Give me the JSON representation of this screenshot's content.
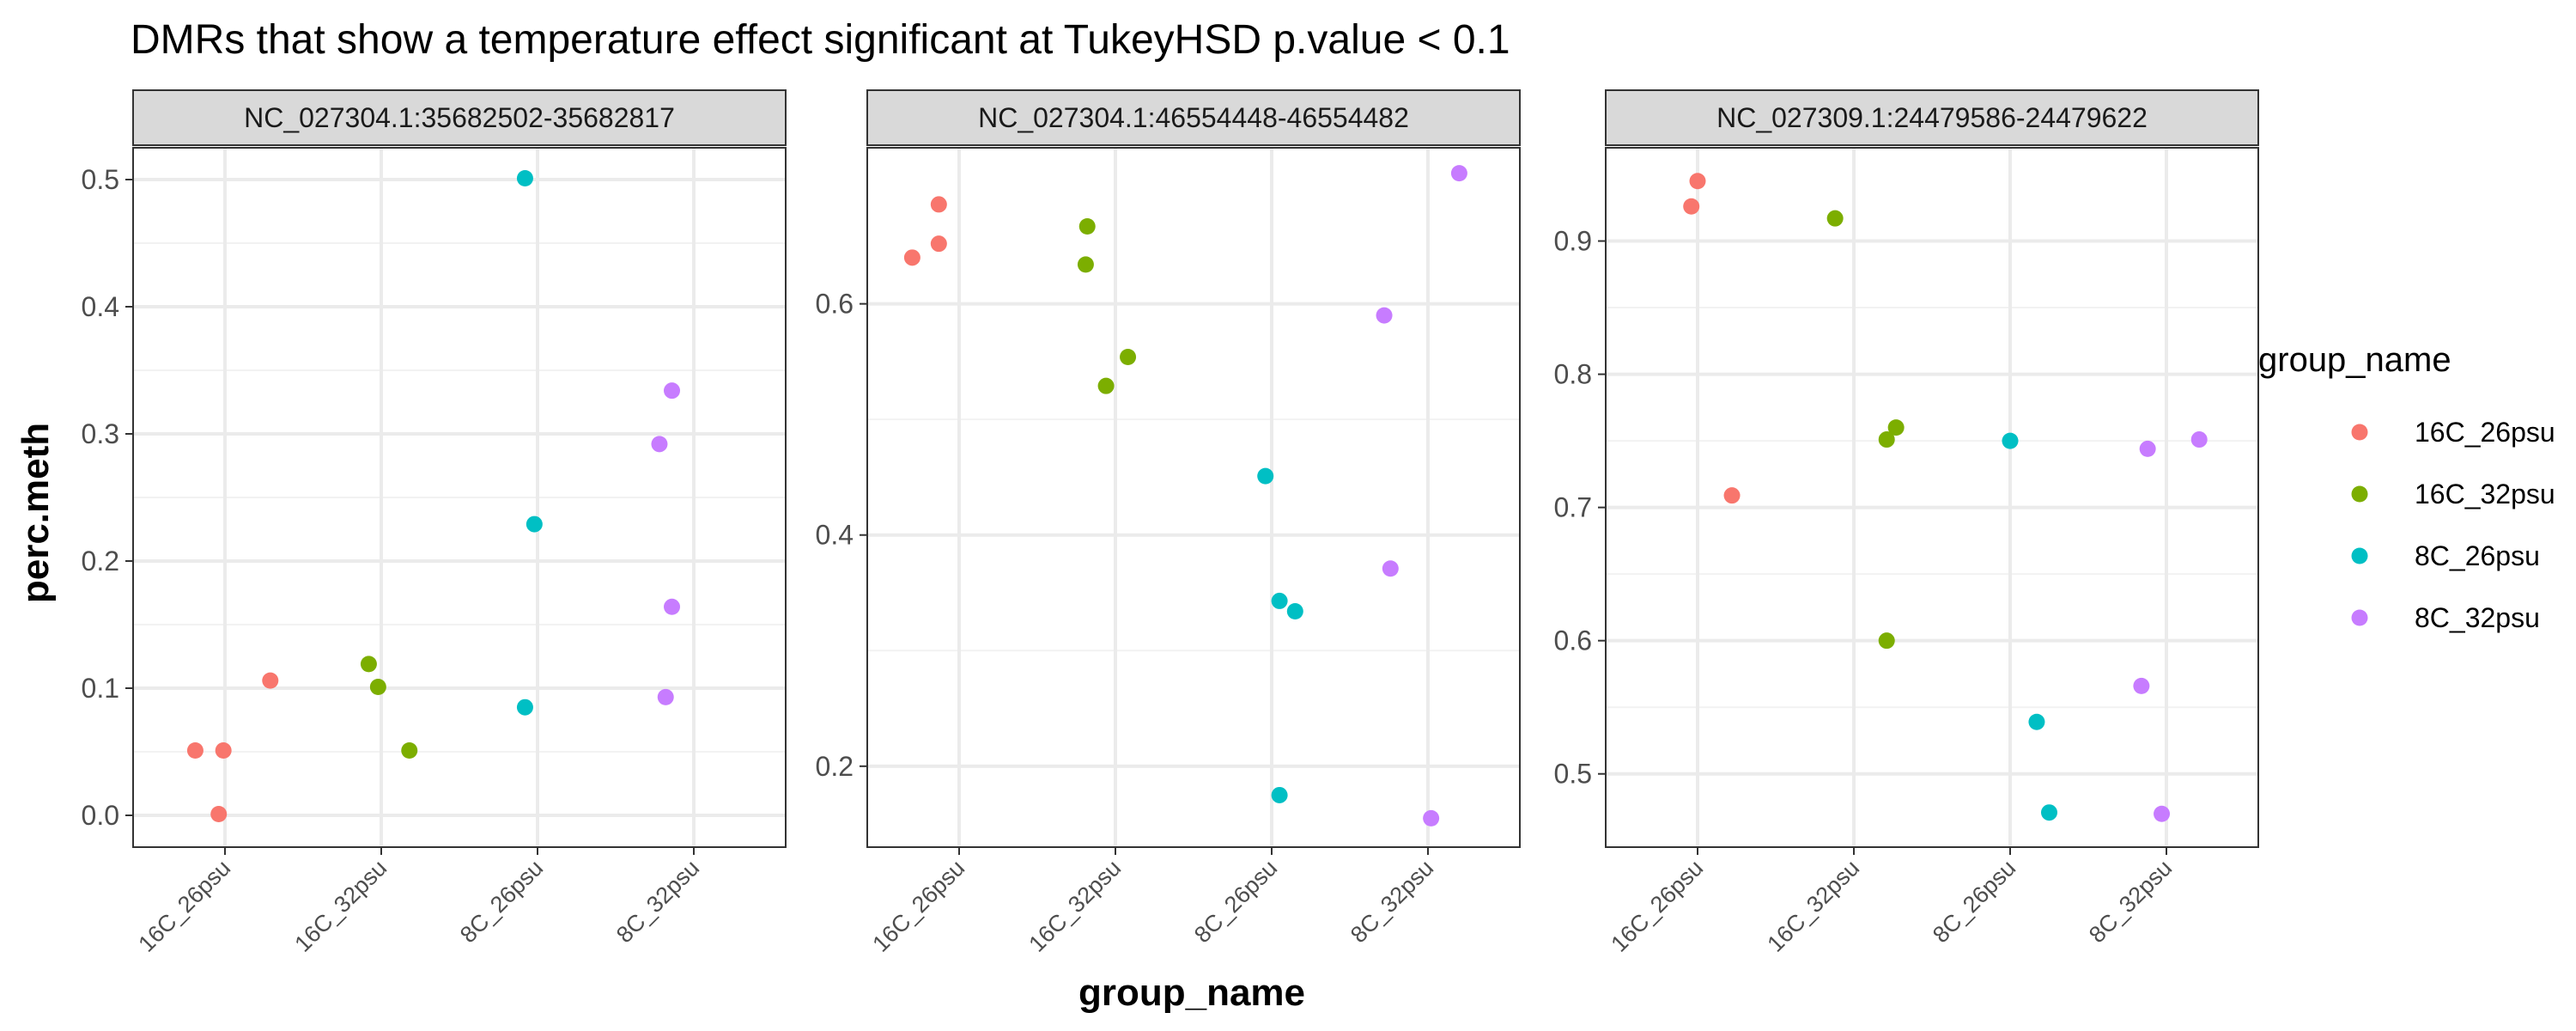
{
  "chart_data": {
    "type": "scatter",
    "title": "DMRs that show a temperature effect significant at TukeyHSD p.value < 0.1",
    "xlabel": "group_name",
    "ylabel": "perc.meth",
    "categories": [
      "16C_26psu",
      "16C_32psu",
      "8C_26psu",
      "8C_32psu"
    ],
    "legend": {
      "title": "group_name",
      "position": "right",
      "entries": [
        {
          "label": "16C_26psu",
          "color": "#F8766D"
        },
        {
          "label": "16C_32psu",
          "color": "#7CAE00"
        },
        {
          "label": "8C_26psu",
          "color": "#00BFC4"
        },
        {
          "label": "8C_32psu",
          "color": "#C77CFF"
        }
      ]
    },
    "facets": [
      {
        "strip": "NC_027304.1:35682502-35682817",
        "ylim": [
          -0.025,
          0.525
        ],
        "yticks": [
          0.0,
          0.1,
          0.2,
          0.3,
          0.4,
          0.5
        ],
        "ytick_labels": [
          "0.0",
          "0.1",
          "0.2",
          "0.3",
          "0.4",
          "0.5"
        ],
        "points": [
          {
            "group": "16C_26psu",
            "x": 0.81,
            "y": 0.051
          },
          {
            "group": "16C_26psu",
            "x": 0.96,
            "y": 0.001
          },
          {
            "group": "16C_26psu",
            "x": 0.99,
            "y": 0.051
          },
          {
            "group": "16C_26psu",
            "x": 1.29,
            "y": 0.106
          },
          {
            "group": "16C_32psu",
            "x": 1.92,
            "y": 0.119
          },
          {
            "group": "16C_32psu",
            "x": 1.98,
            "y": 0.101
          },
          {
            "group": "16C_32psu",
            "x": 2.18,
            "y": 0.051
          },
          {
            "group": "8C_26psu",
            "x": 2.92,
            "y": 0.501
          },
          {
            "group": "8C_26psu",
            "x": 2.98,
            "y": 0.229
          },
          {
            "group": "8C_26psu",
            "x": 2.92,
            "y": 0.085
          },
          {
            "group": "8C_32psu",
            "x": 3.78,
            "y": 0.292
          },
          {
            "group": "8C_32psu",
            "x": 3.86,
            "y": 0.334
          },
          {
            "group": "8C_32psu",
            "x": 3.86,
            "y": 0.164
          },
          {
            "group": "8C_32psu",
            "x": 3.82,
            "y": 0.093
          }
        ]
      },
      {
        "strip": "NC_027304.1:46554448-46554482",
        "ylim": [
          0.13,
          0.735
        ],
        "yticks": [
          0.2,
          0.4,
          0.6
        ],
        "ytick_labels": [
          "0.2",
          "0.4",
          "0.6"
        ],
        "points": [
          {
            "group": "16C_26psu",
            "x": 0.7,
            "y": 0.64
          },
          {
            "group": "16C_26psu",
            "x": 0.87,
            "y": 0.686
          },
          {
            "group": "16C_26psu",
            "x": 0.87,
            "y": 0.652
          },
          {
            "group": "16C_32psu",
            "x": 1.82,
            "y": 0.667
          },
          {
            "group": "16C_32psu",
            "x": 1.81,
            "y": 0.634
          },
          {
            "group": "16C_32psu",
            "x": 2.08,
            "y": 0.554
          },
          {
            "group": "16C_32psu",
            "x": 1.94,
            "y": 0.529
          },
          {
            "group": "8C_26psu",
            "x": 2.96,
            "y": 0.451
          },
          {
            "group": "8C_26psu",
            "x": 3.05,
            "y": 0.343
          },
          {
            "group": "8C_26psu",
            "x": 3.15,
            "y": 0.334
          },
          {
            "group": "8C_26psu",
            "x": 3.05,
            "y": 0.175
          },
          {
            "group": "8C_32psu",
            "x": 3.72,
            "y": 0.59
          },
          {
            "group": "8C_32psu",
            "x": 3.76,
            "y": 0.371
          },
          {
            "group": "8C_32psu",
            "x": 4.2,
            "y": 0.713
          },
          {
            "group": "8C_32psu",
            "x": 4.02,
            "y": 0.155
          }
        ]
      },
      {
        "strip": "NC_027309.1:24479586-24479622",
        "ylim": [
          0.445,
          0.97
        ],
        "yticks": [
          0.5,
          0.6,
          0.7,
          0.8,
          0.9
        ],
        "ytick_labels": [
          "0.5",
          "0.6",
          "0.7",
          "0.8",
          "0.9"
        ],
        "points": [
          {
            "group": "16C_26psu",
            "x": 0.96,
            "y": 0.926
          },
          {
            "group": "16C_26psu",
            "x": 1.0,
            "y": 0.945
          },
          {
            "group": "16C_26psu",
            "x": 1.22,
            "y": 0.709
          },
          {
            "group": "16C_32psu",
            "x": 1.88,
            "y": 0.917
          },
          {
            "group": "16C_32psu",
            "x": 2.21,
            "y": 0.751
          },
          {
            "group": "16C_32psu",
            "x": 2.27,
            "y": 0.76
          },
          {
            "group": "16C_32psu",
            "x": 2.21,
            "y": 0.6
          },
          {
            "group": "8C_26psu",
            "x": 3.0,
            "y": 0.75
          },
          {
            "group": "8C_26psu",
            "x": 3.17,
            "y": 0.539
          },
          {
            "group": "8C_26psu",
            "x": 3.25,
            "y": 0.471
          },
          {
            "group": "8C_32psu",
            "x": 3.88,
            "y": 0.744
          },
          {
            "group": "8C_32psu",
            "x": 4.21,
            "y": 0.751
          },
          {
            "group": "8C_32psu",
            "x": 3.84,
            "y": 0.566
          },
          {
            "group": "8C_32psu",
            "x": 3.97,
            "y": 0.47
          }
        ]
      }
    ]
  }
}
